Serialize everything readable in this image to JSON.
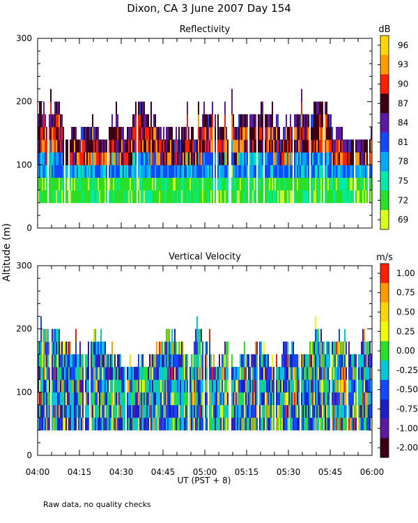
{
  "title": "Dixon, CA  3 June 2007  Day 154",
  "ylabel": "Altitude (m)",
  "xlabel": "UT  (PST + 8)",
  "footnote": "Raw data, no quality checks",
  "chart_data": [
    {
      "type": "heatmap",
      "title": "Reflectivity",
      "colorbar_unit": "dB",
      "x_ticks": [
        "04:00",
        "04:15",
        "04:30",
        "04:45",
        "05:00",
        "05:15",
        "05:30",
        "05:45",
        "06:00"
      ],
      "xlim": [
        "04:00",
        "06:00"
      ],
      "ylim": [
        0,
        300
      ],
      "y_ticks": [
        0,
        100,
        200,
        300
      ],
      "colorbar_ticks": [
        "96",
        "93",
        "90",
        "87",
        "84",
        "81",
        "78",
        "75",
        "72",
        "69"
      ],
      "colorbar_colors": [
        "#ffd800",
        "#ff9a00",
        "#ff1e00",
        "#3d0012",
        "#5a18a6",
        "#1248ff",
        "#00a8ff",
        "#00eaa8",
        "#28e028",
        "#d8ff1e"
      ],
      "range_gate_m": 20,
      "echo_base_m": 40,
      "echo_top_typical_m": [
        140,
        220
      ],
      "echo_top_max_m": 220
    },
    {
      "type": "heatmap",
      "title": "Vertical Velocity",
      "colorbar_unit": "m/s",
      "x_ticks": [
        "04:00",
        "04:15",
        "04:30",
        "04:45",
        "05:00",
        "05:15",
        "05:30",
        "05:45",
        "06:00"
      ],
      "xlim": [
        "04:00",
        "06:00"
      ],
      "ylim": [
        0,
        300
      ],
      "y_ticks": [
        0,
        100,
        200,
        300
      ],
      "colorbar_ticks": [
        "1.00",
        "0.75",
        "0.50",
        "0.25",
        "0.00",
        "-0.25",
        "-0.50",
        "-0.75",
        "-1.00",
        "-2.00"
      ],
      "colorbar_colors": [
        "#ff1e00",
        "#ff9a00",
        "#ffd800",
        "#f0ff00",
        "#28e028",
        "#00c8d8",
        "#1248ff",
        "#1e1ec8",
        "#5a18a6",
        "#3d0012"
      ],
      "range_gate_m": 20,
      "echo_base_m": 40,
      "echo_top_typical_m": [
        140,
        220
      ],
      "echo_top_max_m": 220
    }
  ]
}
